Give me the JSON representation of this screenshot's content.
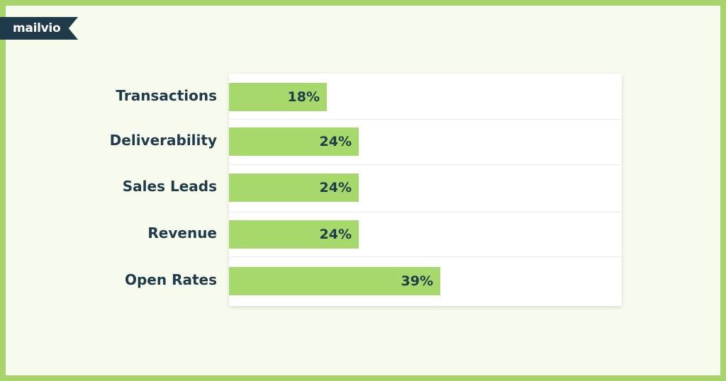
{
  "brand": {
    "logo_text": "mailvio"
  },
  "chart_data": {
    "type": "bar",
    "orientation": "horizontal",
    "categories": [
      "Transactions",
      "Deliverability",
      "Sales Leads",
      "Revenue",
      "Open Rates"
    ],
    "values": [
      18,
      24,
      24,
      24,
      39
    ],
    "value_labels": [
      "18%",
      "24%",
      "24%",
      "24%",
      "39%"
    ],
    "title": "",
    "xlabel": "",
    "ylabel": "",
    "xlim": [
      0,
      72.5
    ],
    "grid": false,
    "colors": {
      "bar": "#a7d86c",
      "text": "#1f3b4a",
      "border": "#a7d36a",
      "background": "#f6fbee"
    }
  }
}
